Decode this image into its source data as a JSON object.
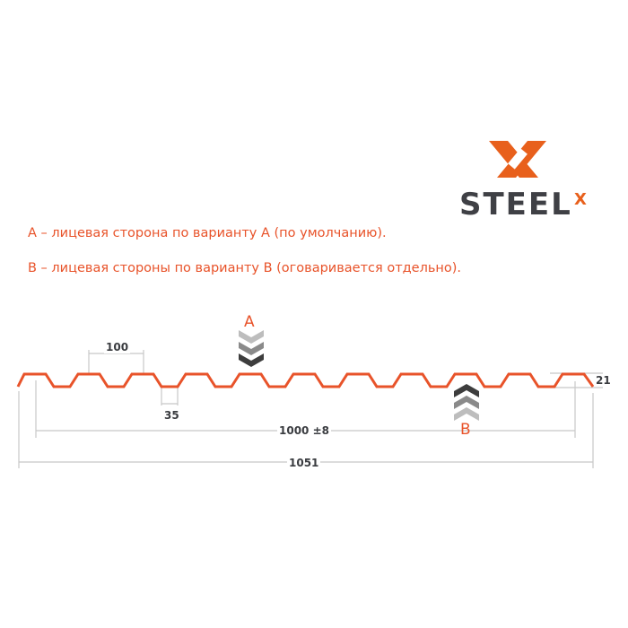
{
  "logo": {
    "text": "STEEL",
    "superscript": "X",
    "accent": "#e8601c",
    "dark": "#3f4045"
  },
  "legend": {
    "line_a": "А – лицевая сторона по варианту А (по умолчанию).",
    "line_b": "В – лицевая стороны по варианту В (оговаривается отдельно)."
  },
  "diagram": {
    "label_a": "А",
    "label_b": "В",
    "dim_pitch": "100",
    "dim_bottom": "35",
    "dim_height": "21",
    "dim_useful": "1000 ±8",
    "dim_total": "1051",
    "profile_color": "#e8532a",
    "dim_color": "#c8c8c8"
  }
}
